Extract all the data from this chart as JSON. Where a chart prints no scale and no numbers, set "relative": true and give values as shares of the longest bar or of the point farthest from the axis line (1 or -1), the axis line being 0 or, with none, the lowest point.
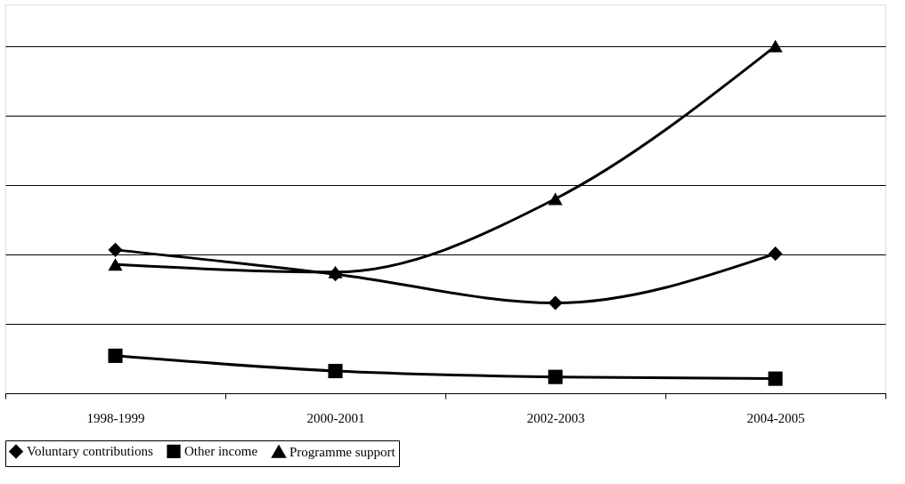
{
  "chart_data": {
    "type": "line",
    "relative": true,
    "categories": [
      "1998-1999",
      "2000-2001",
      "2002-2003",
      "2004-2005"
    ],
    "series": [
      {
        "name": "Voluntary contributions",
        "color": "#000000",
        "marker": "diamond",
        "values": [
          0.413,
          0.343,
          0.26,
          0.402
        ]
      },
      {
        "name": "Other income",
        "color": "#000000",
        "marker": "square",
        "values": [
          0.108,
          0.064,
          0.047,
          0.042
        ]
      },
      {
        "name": "Programme support",
        "color": "#000000",
        "marker": "triangle",
        "values": [
          0.371,
          0.349,
          0.56,
          1.0
        ]
      }
    ],
    "grid": "y",
    "legend": "bottom",
    "line_style": "solid",
    "tick_labels": "x"
  }
}
